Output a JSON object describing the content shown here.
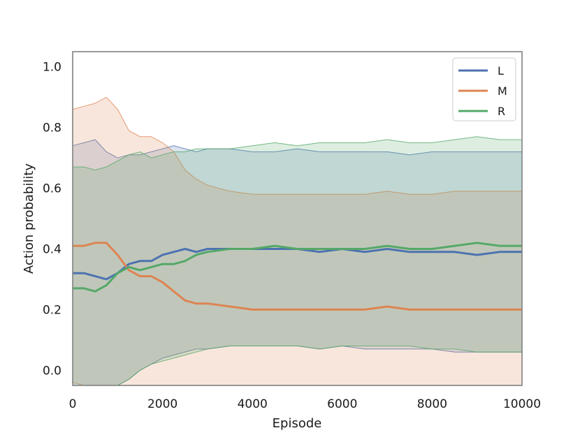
{
  "chart_data": {
    "type": "line",
    "title": "",
    "xlabel": "Episode",
    "ylabel": "Action probability",
    "xlim": [
      0,
      10000
    ],
    "ylim": [
      -0.05,
      1.05
    ],
    "xticks": [
      0,
      2000,
      4000,
      6000,
      8000,
      10000
    ],
    "xtick_labels": [
      "0",
      "2000",
      "4000",
      "6000",
      "8000",
      "10000"
    ],
    "yticks": [
      0.0,
      0.2,
      0.4,
      0.6,
      0.8,
      1.0
    ],
    "ytick_labels": [
      "0.0",
      "0.2",
      "0.4",
      "0.6",
      "0.8",
      "1.0"
    ],
    "grid": false,
    "legend_position": "top-right",
    "band_note": "shaded bands around each mean line",
    "x": [
      0,
      250,
      500,
      750,
      1000,
      1250,
      1500,
      1750,
      2000,
      2250,
      2500,
      2750,
      3000,
      3500,
      4000,
      4500,
      5000,
      5500,
      6000,
      6500,
      7000,
      7500,
      8000,
      8500,
      9000,
      9500,
      10000
    ],
    "series": [
      {
        "name": "L",
        "color": "#4c72b0",
        "mean": [
          0.32,
          0.32,
          0.31,
          0.3,
          0.32,
          0.35,
          0.36,
          0.36,
          0.38,
          0.39,
          0.4,
          0.39,
          0.4,
          0.4,
          0.4,
          0.4,
          0.4,
          0.39,
          0.4,
          0.39,
          0.4,
          0.39,
          0.39,
          0.39,
          0.38,
          0.39,
          0.39
        ],
        "upper": [
          0.74,
          0.75,
          0.76,
          0.72,
          0.7,
          0.71,
          0.71,
          0.72,
          0.73,
          0.74,
          0.73,
          0.72,
          0.73,
          0.73,
          0.72,
          0.72,
          0.73,
          0.72,
          0.72,
          0.72,
          0.72,
          0.71,
          0.72,
          0.72,
          0.72,
          0.72,
          0.72
        ],
        "lower": [
          -0.05,
          -0.05,
          -0.05,
          -0.05,
          -0.05,
          -0.03,
          0.0,
          0.02,
          0.04,
          0.05,
          0.06,
          0.07,
          0.07,
          0.08,
          0.08,
          0.08,
          0.08,
          0.07,
          0.08,
          0.07,
          0.07,
          0.07,
          0.07,
          0.06,
          0.06,
          0.06,
          0.06
        ]
      },
      {
        "name": "M",
        "color": "#dd8452",
        "mean": [
          0.41,
          0.41,
          0.42,
          0.42,
          0.38,
          0.33,
          0.31,
          0.31,
          0.29,
          0.26,
          0.23,
          0.22,
          0.22,
          0.21,
          0.2,
          0.2,
          0.2,
          0.2,
          0.2,
          0.2,
          0.21,
          0.2,
          0.2,
          0.2,
          0.2,
          0.2,
          0.2
        ],
        "upper": [
          0.86,
          0.87,
          0.88,
          0.9,
          0.86,
          0.79,
          0.77,
          0.77,
          0.75,
          0.72,
          0.66,
          0.63,
          0.61,
          0.59,
          0.58,
          0.58,
          0.58,
          0.58,
          0.58,
          0.58,
          0.59,
          0.58,
          0.58,
          0.59,
          0.59,
          0.59,
          0.59
        ],
        "lower": [
          -0.04,
          -0.05,
          -0.05,
          -0.05,
          -0.05,
          -0.05,
          -0.05,
          -0.05,
          -0.05,
          -0.05,
          -0.05,
          -0.05,
          -0.05,
          -0.05,
          -0.05,
          -0.05,
          -0.05,
          -0.05,
          -0.05,
          -0.05,
          -0.05,
          -0.05,
          -0.05,
          -0.05,
          -0.05,
          -0.05,
          -0.05
        ]
      },
      {
        "name": "R",
        "color": "#55a868",
        "mean": [
          0.27,
          0.27,
          0.26,
          0.28,
          0.32,
          0.34,
          0.33,
          0.34,
          0.35,
          0.35,
          0.36,
          0.38,
          0.39,
          0.4,
          0.4,
          0.41,
          0.4,
          0.4,
          0.4,
          0.4,
          0.41,
          0.4,
          0.4,
          0.41,
          0.42,
          0.41,
          0.41
        ],
        "upper": [
          0.67,
          0.67,
          0.66,
          0.67,
          0.69,
          0.71,
          0.72,
          0.7,
          0.71,
          0.72,
          0.72,
          0.73,
          0.73,
          0.73,
          0.74,
          0.75,
          0.74,
          0.75,
          0.75,
          0.75,
          0.76,
          0.75,
          0.75,
          0.76,
          0.77,
          0.76,
          0.76
        ],
        "lower": [
          -0.05,
          -0.05,
          -0.05,
          -0.05,
          -0.05,
          -0.03,
          0.0,
          0.02,
          0.03,
          0.04,
          0.05,
          0.06,
          0.07,
          0.08,
          0.08,
          0.08,
          0.08,
          0.07,
          0.08,
          0.08,
          0.08,
          0.08,
          0.07,
          0.07,
          0.06,
          0.06,
          0.06
        ]
      }
    ]
  }
}
